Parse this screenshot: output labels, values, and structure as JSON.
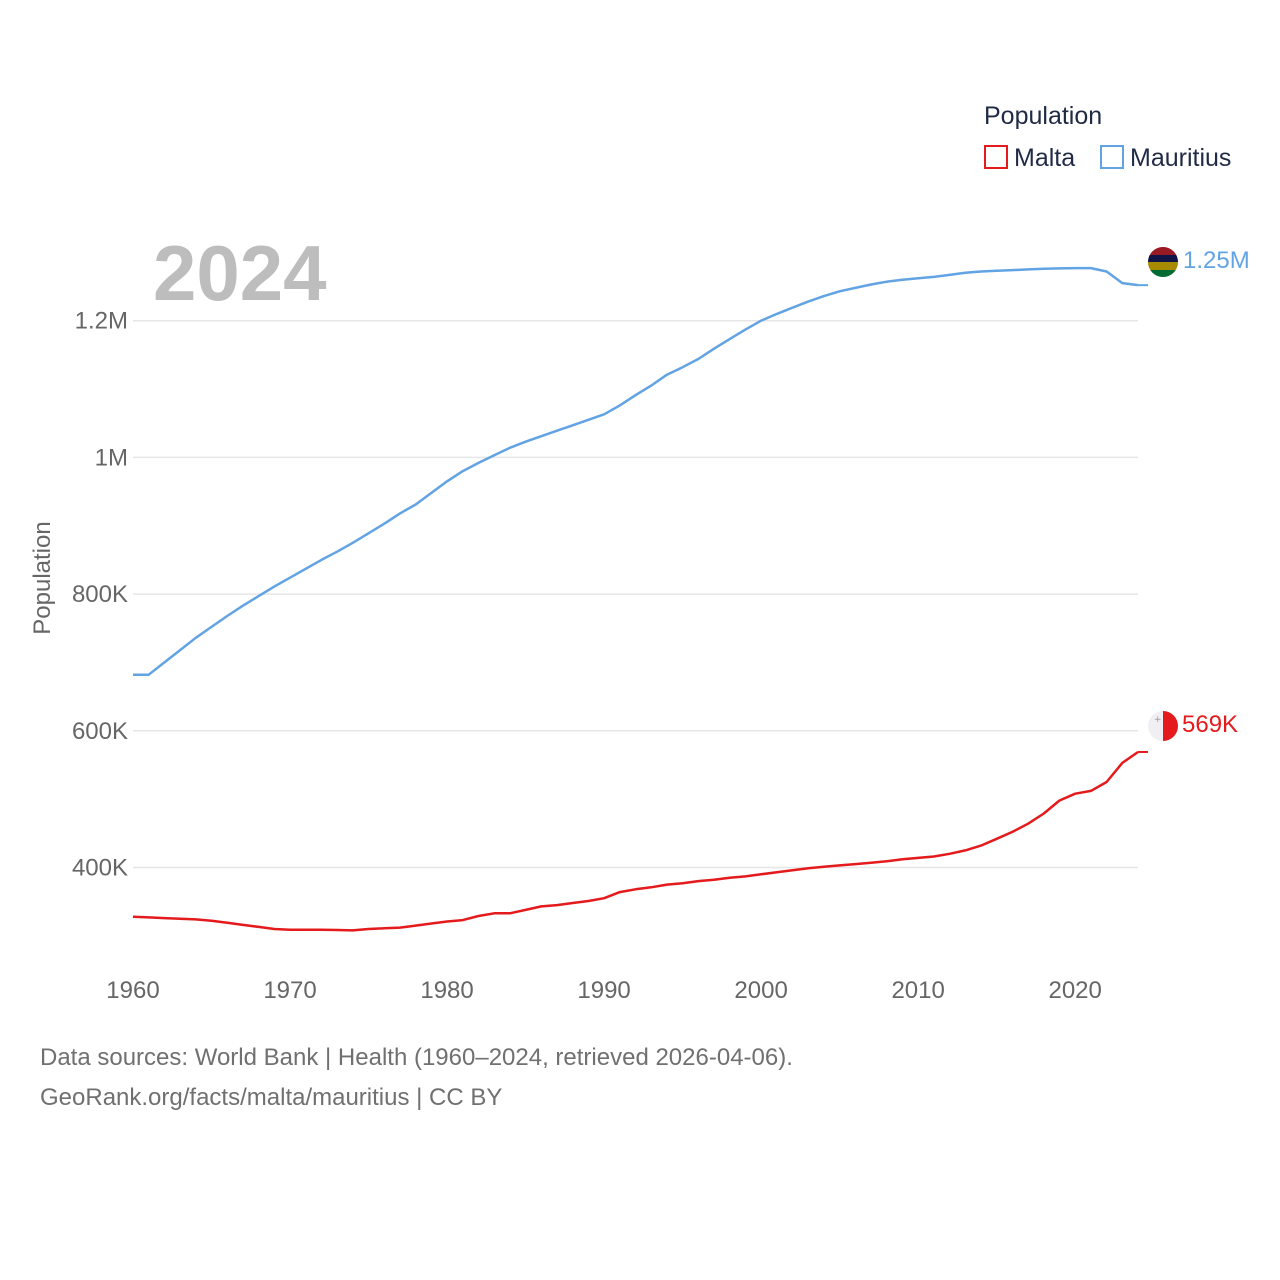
{
  "chart_data": {
    "type": "line",
    "legend_title": "Population",
    "ylabel": "Population",
    "year_label": "2024",
    "ylim": [
      250000,
      1340000
    ],
    "xlim": [
      1960,
      2024
    ],
    "yticks": [
      {
        "value": 400000,
        "label": "400K"
      },
      {
        "value": 600000,
        "label": "600K"
      },
      {
        "value": 800000,
        "label": "800K"
      },
      {
        "value": 1000000,
        "label": "1M"
      },
      {
        "value": 1200000,
        "label": "1.2M"
      }
    ],
    "xticks": [
      {
        "value": 1960,
        "label": "1960"
      },
      {
        "value": 1970,
        "label": "1970"
      },
      {
        "value": 1980,
        "label": "1980"
      },
      {
        "value": 1990,
        "label": "1990"
      },
      {
        "value": 2000,
        "label": "2000"
      },
      {
        "value": 2010,
        "label": "2010"
      },
      {
        "value": 2020,
        "label": "2020"
      }
    ],
    "x": [
      1960,
      1961,
      1962,
      1963,
      1964,
      1965,
      1966,
      1967,
      1968,
      1969,
      1970,
      1971,
      1972,
      1973,
      1974,
      1975,
      1976,
      1977,
      1978,
      1979,
      1980,
      1981,
      1982,
      1983,
      1984,
      1985,
      1986,
      1987,
      1988,
      1989,
      1990,
      1991,
      1992,
      1993,
      1994,
      1995,
      1996,
      1997,
      1998,
      1999,
      2000,
      2001,
      2002,
      2003,
      2004,
      2005,
      2006,
      2007,
      2008,
      2009,
      2010,
      2011,
      2012,
      2013,
      2014,
      2015,
      2016,
      2017,
      2018,
      2019,
      2020,
      2021,
      2022,
      2023,
      2024
    ],
    "series": [
      {
        "name": "Malta",
        "color": "#e41a1c",
        "end_label": "569K",
        "values": [
          328000,
          327000,
          326000,
          325000,
          324000,
          322000,
          319000,
          316000,
          313000,
          310000,
          309000,
          309000,
          309000,
          308500,
          308000,
          310000,
          311000,
          312000,
          315000,
          318000,
          321000,
          323000,
          329000,
          333000,
          333000,
          338000,
          343000,
          345000,
          348000,
          351000,
          355000,
          364000,
          368000,
          371000,
          375000,
          377000,
          380000,
          382000,
          385000,
          387000,
          390000,
          393000,
          396000,
          399000,
          401000,
          403000,
          405000,
          407000,
          409000,
          412000,
          414000,
          416000,
          420000,
          425000,
          432000,
          442000,
          452000,
          464000,
          479000,
          498000,
          508000,
          512000,
          525000,
          553000,
          569000
        ]
      },
      {
        "name": "Mauritius",
        "color": "#62a3e4",
        "end_label": "1.25M",
        "values": [
          682000,
          682000,
          700000,
          718000,
          736000,
          752000,
          768000,
          783000,
          797000,
          811000,
          824000,
          837000,
          850000,
          862000,
          875000,
          889000,
          903000,
          918000,
          931000,
          948000,
          965000,
          980000,
          992000,
          1003000,
          1014000,
          1023000,
          1031000,
          1039000,
          1047000,
          1055000,
          1063000,
          1076000,
          1091000,
          1105000,
          1121000,
          1132000,
          1144000,
          1159000,
          1173000,
          1187000,
          1200000,
          1210000,
          1219000,
          1228000,
          1236000,
          1243000,
          1248000,
          1253000,
          1257000,
          1260000,
          1262000,
          1264000,
          1267000,
          1270000,
          1272000,
          1273000,
          1274000,
          1275000,
          1276000,
          1276500,
          1277000,
          1277000,
          1272000,
          1255000,
          1252000
        ]
      }
    ]
  },
  "footer": {
    "line1": "Data sources: World Bank | Health (1960–2024, retrieved 2026-04-06).",
    "line2": "GeoRank.org/facts/malta/mauritius | CC BY"
  }
}
